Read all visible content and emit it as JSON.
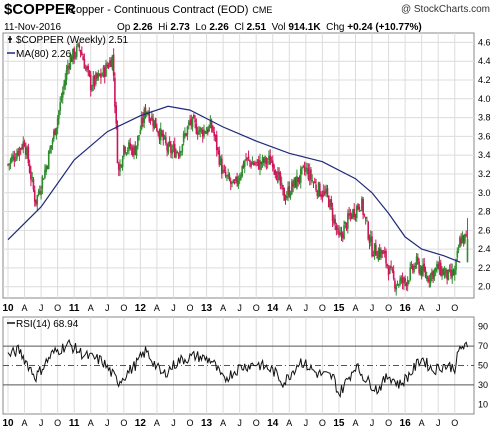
{
  "header": {
    "ticker": "$COPPER",
    "subtitle": "Copper - Continuous Contract (EOD)",
    "exchange": "CME",
    "credit": "@ StockCharts.com",
    "date": "11-Nov-2016",
    "op_label": "Op",
    "op": "2.26",
    "hi_label": "Hi",
    "hi": "2.73",
    "lo_label": "Lo",
    "lo": "2.26",
    "cl_label": "Cl",
    "cl": "2.51",
    "vol_label": "Vol",
    "vol": "914.1K",
    "chg_label": "Chg",
    "chg": "+0.24 (+10.77%)"
  },
  "legend": {
    "price": "$COPPER (Weekly) 2.51",
    "ma": "MA(80) 2.26",
    "rsi": "RSI(14) 68.94"
  },
  "colors": {
    "up": "#2e8b2e",
    "down": "#d0145a",
    "ma": "#1f2a7a",
    "rsi": "#111111",
    "grid": "#dcdcdc",
    "refline": "#555555"
  },
  "chart_data": [
    {
      "type": "candlestick",
      "title": "$COPPER (Weekly)",
      "x_tick_labels": [
        "10",
        "A",
        "J",
        "O",
        "11",
        "A",
        "J",
        "O",
        "12",
        "A",
        "J",
        "O",
        "13",
        "A",
        "J",
        "O",
        "14",
        "A",
        "J",
        "O",
        "15",
        "A",
        "J",
        "O",
        "16",
        "A",
        "J",
        "O"
      ],
      "y_ticks": [
        "4.6",
        "4.4",
        "4.2",
        "4.0",
        "3.8",
        "3.6",
        "3.4",
        "3.2",
        "3.0",
        "2.8",
        "2.6",
        "2.4",
        "2.2",
        "2.0"
      ],
      "ylim": [
        1.88,
        4.7
      ],
      "grid": true,
      "series": [
        {
          "name": "$COPPER (Weekly)",
          "values": [
            [
              "2010-01",
              3.3
            ],
            [
              "2010-04",
              3.55
            ],
            [
              "2010-06",
              2.9
            ],
            [
              "2010-08",
              3.3
            ],
            [
              "2010-10",
              3.8
            ],
            [
              "2010-12",
              4.4
            ],
            [
              "2011-02",
              4.55
            ],
            [
              "2011-04",
              4.15
            ],
            [
              "2011-06",
              4.25
            ],
            [
              "2011-08",
              4.45
            ],
            [
              "2011-09",
              3.2
            ],
            [
              "2011-10",
              3.5
            ],
            [
              "2011-12",
              3.45
            ],
            [
              "2012-02",
              3.9
            ],
            [
              "2012-04",
              3.7
            ],
            [
              "2012-06",
              3.45
            ],
            [
              "2012-08",
              3.45
            ],
            [
              "2012-10",
              3.75
            ],
            [
              "2012-12",
              3.65
            ],
            [
              "2013-02",
              3.7
            ],
            [
              "2013-04",
              3.2
            ],
            [
              "2013-06",
              3.05
            ],
            [
              "2013-08",
              3.35
            ],
            [
              "2013-10",
              3.3
            ],
            [
              "2014-01",
              3.35
            ],
            [
              "2014-03",
              2.95
            ],
            [
              "2014-05",
              3.1
            ],
            [
              "2014-07",
              3.25
            ],
            [
              "2014-09",
              3.05
            ],
            [
              "2014-11",
              2.95
            ],
            [
              "2015-01",
              2.5
            ],
            [
              "2015-03",
              2.75
            ],
            [
              "2015-05",
              2.9
            ],
            [
              "2015-07",
              2.4
            ],
            [
              "2015-09",
              2.35
            ],
            [
              "2015-11",
              2.05
            ],
            [
              "2016-01",
              2.05
            ],
            [
              "2016-03",
              2.25
            ],
            [
              "2016-05",
              2.1
            ],
            [
              "2016-07",
              2.2
            ],
            [
              "2016-09",
              2.1
            ],
            [
              "2016-10",
              2.15
            ],
            [
              "2016-11",
              2.51
            ]
          ]
        },
        {
          "name": "MA(80)",
          "values": [
            [
              "2010-01",
              2.5
            ],
            [
              "2010-07",
              2.85
            ],
            [
              "2011-01",
              3.35
            ],
            [
              "2011-07",
              3.65
            ],
            [
              "2012-01",
              3.82
            ],
            [
              "2012-06",
              3.92
            ],
            [
              "2012-10",
              3.88
            ],
            [
              "2013-04",
              3.7
            ],
            [
              "2013-10",
              3.55
            ],
            [
              "2014-04",
              3.42
            ],
            [
              "2014-10",
              3.33
            ],
            [
              "2015-04",
              3.15
            ],
            [
              "2015-07",
              3.0
            ],
            [
              "2015-10",
              2.78
            ],
            [
              "2016-01",
              2.53
            ],
            [
              "2016-04",
              2.4
            ],
            [
              "2016-08",
              2.33
            ],
            [
              "2016-11",
              2.26
            ]
          ]
        }
      ]
    },
    {
      "type": "line",
      "title": "RSI(14)",
      "y_ticks": [
        "90",
        "70",
        "50",
        "30",
        "10"
      ],
      "ylim": [
        0,
        100
      ],
      "reference_lines": [
        70,
        50,
        30
      ],
      "series": [
        {
          "name": "RSI(14)",
          "values": [
            [
              "2010-01",
              60
            ],
            [
              "2010-03",
              66
            ],
            [
              "2010-06",
              38
            ],
            [
              "2010-09",
              62
            ],
            [
              "2010-12",
              72
            ],
            [
              "2011-03",
              60
            ],
            [
              "2011-06",
              55
            ],
            [
              "2011-09",
              33
            ],
            [
              "2011-12",
              50
            ],
            [
              "2012-02",
              65
            ],
            [
              "2012-05",
              40
            ],
            [
              "2012-08",
              55
            ],
            [
              "2012-11",
              60
            ],
            [
              "2013-02",
              55
            ],
            [
              "2013-04",
              35
            ],
            [
              "2013-07",
              48
            ],
            [
              "2013-10",
              52
            ],
            [
              "2014-01",
              45
            ],
            [
              "2014-03",
              32
            ],
            [
              "2014-06",
              55
            ],
            [
              "2014-09",
              42
            ],
            [
              "2014-12",
              38
            ],
            [
              "2015-01",
              20
            ],
            [
              "2015-04",
              50
            ],
            [
              "2015-06",
              35
            ],
            [
              "2015-08",
              25
            ],
            [
              "2015-10",
              40
            ],
            [
              "2015-12",
              30
            ],
            [
              "2016-02",
              42
            ],
            [
              "2016-04",
              58
            ],
            [
              "2016-06",
              45
            ],
            [
              "2016-08",
              50
            ],
            [
              "2016-10",
              48
            ],
            [
              "2016-11",
              68.94
            ]
          ]
        }
      ]
    }
  ]
}
